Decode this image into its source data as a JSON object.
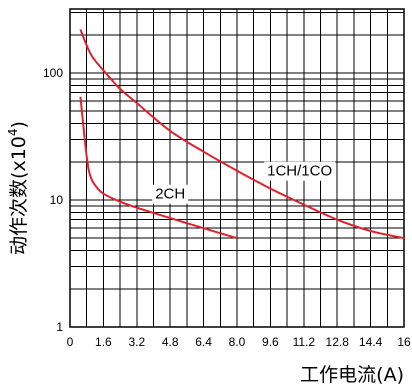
{
  "chart_data": {
    "type": "line",
    "title": "",
    "xlabel": "工作电流(A)",
    "ylabel_main": "动作次数(x10",
    "ylabel_sup": "4",
    "ylabel_close": ")",
    "x_ticks": [
      "0",
      "1.6",
      "3.2",
      "4.8",
      "6.4",
      "8.0",
      "9.6",
      "11.2",
      "12.8",
      "14.4",
      "16"
    ],
    "xlim": [
      0,
      16
    ],
    "y_scale": "log",
    "y_ticks": [
      "1",
      "10",
      "100"
    ],
    "ylim": [
      1,
      500
    ],
    "grid": true,
    "line_color": "#e0202b",
    "series": [
      {
        "name": "1CH/1CO",
        "x": [
          0.5,
          1.0,
          1.6,
          2.4,
          3.2,
          4.8,
          6.4,
          8.0,
          9.6,
          11.2,
          12.8,
          14.4,
          16.0
        ],
        "y": [
          220,
          140,
          105,
          75,
          58,
          35,
          24,
          17,
          12.3,
          9.2,
          7.0,
          5.7,
          5.0
        ]
      },
      {
        "name": "2CH",
        "x": [
          0.5,
          0.8,
          1.0,
          1.3,
          1.6,
          2.4,
          3.2,
          4.8,
          6.4,
          8.0
        ],
        "y": [
          65,
          22,
          15,
          12.5,
          11.2,
          9.7,
          8.7,
          7.2,
          6.0,
          5.0
        ]
      }
    ]
  }
}
